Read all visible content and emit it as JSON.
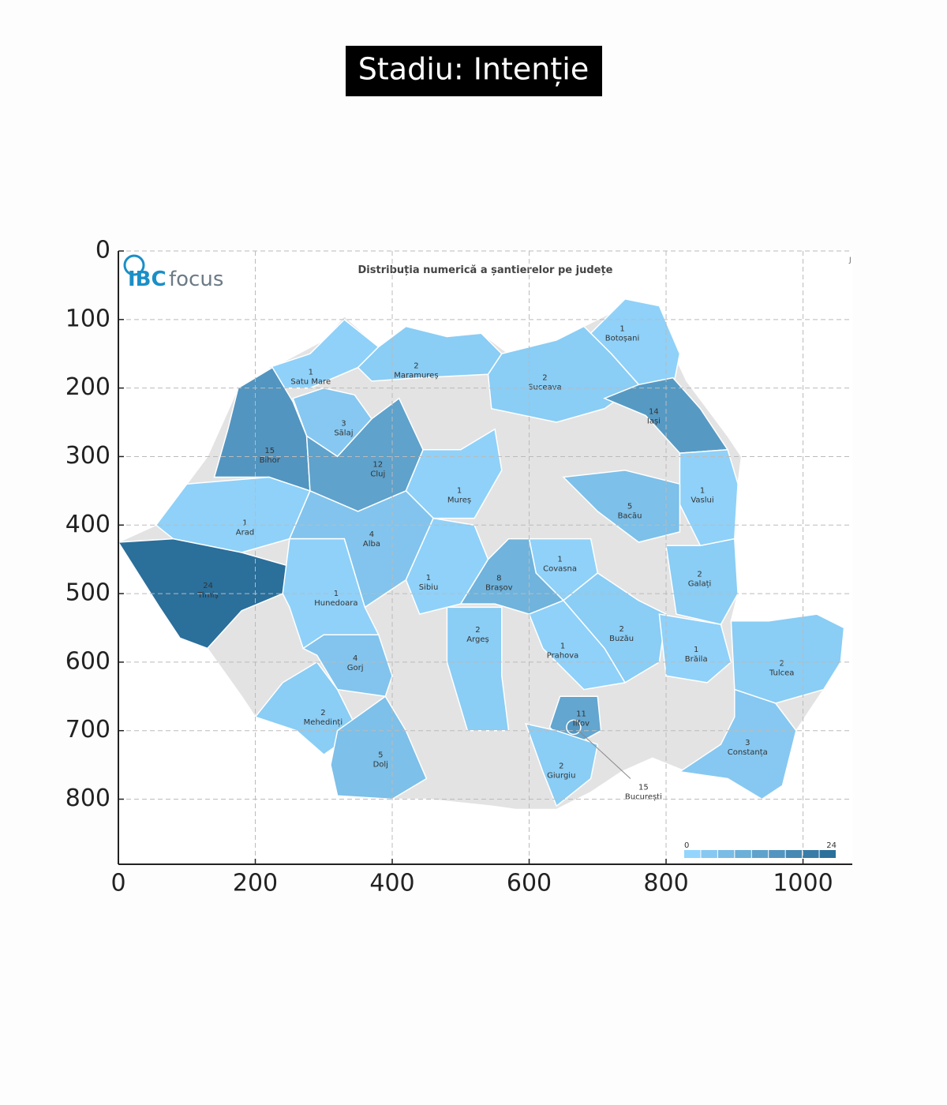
{
  "chart_data": {
    "type": "map",
    "title": "Stadiu: Intenție",
    "xlim": [
      0,
      1072
    ],
    "ylim": [
      895,
      0
    ],
    "xticks": [
      0,
      200,
      400,
      600,
      800,
      1000
    ],
    "yticks": [
      0,
      100,
      200,
      300,
      400,
      500,
      600,
      700,
      800
    ],
    "grid": true,
    "map_title": "Distribuția numerică a șantierelor pe județe",
    "logo": {
      "brand": "IBC",
      "product": "focus"
    },
    "corner_mark": "J",
    "colorscale": [
      "#93d5fd",
      "#2b6f9b"
    ],
    "legend": {
      "min": 0,
      "max": 24
    },
    "counties": [
      {
        "name": "Botoșani",
        "value": 1
      },
      {
        "name": "Satu Mare",
        "value": 1
      },
      {
        "name": "Maramureș",
        "value": 2
      },
      {
        "name": "Suceava",
        "value": 2
      },
      {
        "name": "Iași",
        "value": 14
      },
      {
        "name": "Sălaj",
        "value": 3
      },
      {
        "name": "Bihor",
        "value": 15
      },
      {
        "name": "Cluj",
        "value": 12
      },
      {
        "name": "Mureș",
        "value": 1
      },
      {
        "name": "Vaslui",
        "value": 1
      },
      {
        "name": "Bacău",
        "value": 5
      },
      {
        "name": "Arad",
        "value": 1
      },
      {
        "name": "Alba",
        "value": 4
      },
      {
        "name": "Covasna",
        "value": 1
      },
      {
        "name": "Galați",
        "value": 2
      },
      {
        "name": "Timiș",
        "value": 24
      },
      {
        "name": "Sibiu",
        "value": 1
      },
      {
        "name": "Brașov",
        "value": 8
      },
      {
        "name": "Hunedoara",
        "value": 1
      },
      {
        "name": "Argeș",
        "value": 2
      },
      {
        "name": "Buzău",
        "value": 2
      },
      {
        "name": "Prahova",
        "value": 1
      },
      {
        "name": "Brăila",
        "value": 1
      },
      {
        "name": "Tulcea",
        "value": 2
      },
      {
        "name": "Gorj",
        "value": 4
      },
      {
        "name": "Mehedinți",
        "value": 2
      },
      {
        "name": "Dolj",
        "value": 5
      },
      {
        "name": "Ilfov",
        "value": 11
      },
      {
        "name": "Giurgiu",
        "value": 2
      },
      {
        "name": "Constanța",
        "value": 3
      },
      {
        "name": "București",
        "value": 15
      }
    ]
  }
}
